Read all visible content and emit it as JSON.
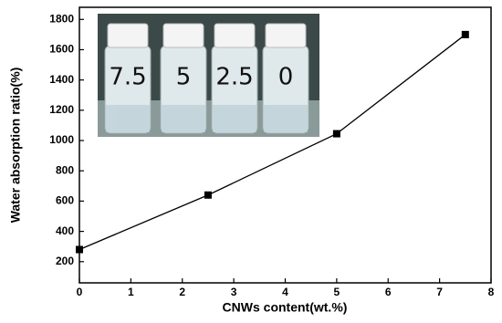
{
  "chart_data": {
    "type": "line",
    "x_label": "CNWs content(wt.%)",
    "y_label": "Water absorption ratio(%)",
    "x": [
      0,
      2.5,
      5,
      7.5
    ],
    "series": [
      {
        "color": "#000000",
        "values": [
          280,
          640,
          1045,
          1700
        ]
      }
    ],
    "xlim": [
      0,
      8
    ],
    "xticks": [
      0,
      1,
      2,
      3,
      4,
      5,
      6,
      7,
      8
    ],
    "ylim": [
      60,
      1880
    ],
    "yticks": [
      200,
      400,
      600,
      800,
      1000,
      1200,
      1400,
      1600,
      1800
    ],
    "inset_labels": [
      "7.5",
      "5",
      "2.5",
      "0"
    ]
  }
}
